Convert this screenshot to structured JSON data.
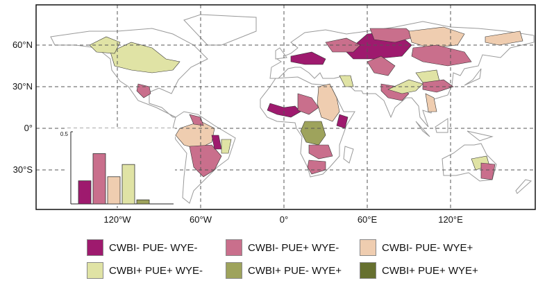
{
  "axes": {
    "lon_ticks": [
      {
        "value": -120,
        "label": "120°W"
      },
      {
        "value": -60,
        "label": "60°W"
      },
      {
        "value": 0,
        "label": "0°"
      },
      {
        "value": 60,
        "label": "60°E"
      },
      {
        "value": 120,
        "label": "120°E"
      }
    ],
    "lat_ticks": [
      {
        "value": 60,
        "label": "60°N"
      },
      {
        "value": 30,
        "label": "30°N"
      },
      {
        "value": 0,
        "label": "0°"
      },
      {
        "value": -30,
        "label": "30°S"
      }
    ],
    "gridlines": "dashed"
  },
  "categories": [
    {
      "label": "CWBI- PUE- WYE-",
      "color": "#9e1a6e"
    },
    {
      "label": "CWBI- PUE+ WYE-",
      "color": "#c96f8c"
    },
    {
      "label": "CWBI- PUE- WYE+",
      "color": "#efcdb0"
    },
    {
      "label": "CWBI+ PUE+ WYE-",
      "color": "#e0e3a5"
    },
    {
      "label": "CWBI+ PUE- WYE+",
      "color": "#9ea35c"
    },
    {
      "label": "CWBI+ PUE+ WYE+",
      "color": "#66702f"
    }
  ],
  "regions": [
    {
      "cat": 3,
      "poly": [
        [
          -125,
          55
        ],
        [
          -110,
          62
        ],
        [
          -95,
          58
        ],
        [
          -85,
          50
        ],
        [
          -75,
          48
        ],
        [
          -80,
          42
        ],
        [
          -95,
          40
        ],
        [
          -110,
          42
        ],
        [
          -122,
          45
        ]
      ]
    },
    {
      "cat": 3,
      "poly": [
        [
          -140,
          60
        ],
        [
          -128,
          66
        ],
        [
          -118,
          62
        ],
        [
          -122,
          54
        ],
        [
          -135,
          55
        ]
      ]
    },
    {
      "cat": 1,
      "poly": [
        [
          -105,
          32
        ],
        [
          -97,
          30
        ],
        [
          -96,
          25
        ],
        [
          -101,
          22
        ],
        [
          -106,
          27
        ]
      ]
    },
    {
      "cat": 0,
      "poly": [
        [
          5,
          52
        ],
        [
          20,
          55
        ],
        [
          30,
          50
        ],
        [
          28,
          46
        ],
        [
          15,
          46
        ],
        [
          5,
          48
        ]
      ]
    },
    {
      "cat": 0,
      "poly": [
        [
          45,
          55
        ],
        [
          60,
          68
        ],
        [
          80,
          70
        ],
        [
          92,
          60
        ],
        [
          85,
          52
        ],
        [
          65,
          50
        ],
        [
          50,
          50
        ]
      ]
    },
    {
      "cat": 1,
      "poly": [
        [
          30,
          62
        ],
        [
          45,
          65
        ],
        [
          55,
          60
        ],
        [
          50,
          55
        ],
        [
          35,
          55
        ]
      ]
    },
    {
      "cat": 1,
      "poly": [
        [
          62,
          72
        ],
        [
          88,
          72
        ],
        [
          95,
          66
        ],
        [
          80,
          62
        ],
        [
          65,
          64
        ]
      ]
    },
    {
      "cat": 2,
      "poly": [
        [
          90,
          70
        ],
        [
          115,
          73
        ],
        [
          130,
          68
        ],
        [
          125,
          60
        ],
        [
          105,
          58
        ],
        [
          92,
          62
        ]
      ]
    },
    {
      "cat": 2,
      "poly": [
        [
          145,
          66
        ],
        [
          170,
          70
        ],
        [
          172,
          63
        ],
        [
          155,
          60
        ],
        [
          145,
          62
        ]
      ]
    },
    {
      "cat": 1,
      "poly": [
        [
          93,
          58
        ],
        [
          110,
          60
        ],
        [
          130,
          55
        ],
        [
          135,
          48
        ],
        [
          118,
          45
        ],
        [
          100,
          48
        ],
        [
          92,
          52
        ]
      ]
    },
    {
      "cat": 1,
      "poly": [
        [
          60,
          48
        ],
        [
          70,
          52
        ],
        [
          80,
          45
        ],
        [
          75,
          38
        ],
        [
          65,
          40
        ]
      ]
    },
    {
      "cat": 1,
      "poly": [
        [
          70,
          32
        ],
        [
          82,
          30
        ],
        [
          90,
          25
        ],
        [
          85,
          20
        ],
        [
          75,
          22
        ],
        [
          70,
          27
        ]
      ]
    },
    {
      "cat": 3,
      "poly": [
        [
          75,
          28
        ],
        [
          90,
          35
        ],
        [
          100,
          32
        ],
        [
          95,
          27
        ],
        [
          85,
          25
        ]
      ]
    },
    {
      "cat": 3,
      "poly": [
        [
          95,
          40
        ],
        [
          110,
          42
        ],
        [
          112,
          34
        ],
        [
          100,
          33
        ]
      ]
    },
    {
      "cat": 1,
      "poly": [
        [
          100,
          33
        ],
        [
          115,
          35
        ],
        [
          122,
          30
        ],
        [
          110,
          26
        ],
        [
          100,
          28
        ]
      ]
    },
    {
      "cat": 2,
      "poly": [
        [
          102,
          25
        ],
        [
          108,
          22
        ],
        [
          110,
          12
        ],
        [
          104,
          12
        ]
      ]
    },
    {
      "cat": 3,
      "poly": [
        [
          40,
          38
        ],
        [
          48,
          38
        ],
        [
          50,
          30
        ],
        [
          44,
          30
        ]
      ]
    },
    {
      "cat": 0,
      "poly": [
        [
          -10,
          18
        ],
        [
          0,
          15
        ],
        [
          8,
          16
        ],
        [
          12,
          12
        ],
        [
          5,
          8
        ],
        [
          -5,
          10
        ],
        [
          -12,
          13
        ]
      ]
    },
    {
      "cat": 1,
      "poly": [
        [
          10,
          25
        ],
        [
          20,
          22
        ],
        [
          25,
          15
        ],
        [
          18,
          10
        ],
        [
          10,
          13
        ]
      ]
    },
    {
      "cat": 2,
      "poly": [
        [
          25,
          30
        ],
        [
          33,
          32
        ],
        [
          38,
          22
        ],
        [
          40,
          12
        ],
        [
          35,
          5
        ],
        [
          27,
          8
        ],
        [
          24,
          18
        ]
      ]
    },
    {
      "cat": 0,
      "poly": [
        [
          40,
          10
        ],
        [
          46,
          8
        ],
        [
          44,
          0
        ],
        [
          38,
          2
        ]
      ]
    },
    {
      "cat": 4,
      "poly": [
        [
          15,
          5
        ],
        [
          27,
          5
        ],
        [
          30,
          -5
        ],
        [
          25,
          -12
        ],
        [
          16,
          -10
        ],
        [
          12,
          -2
        ]
      ]
    },
    {
      "cat": 1,
      "poly": [
        [
          18,
          -12
        ],
        [
          32,
          -12
        ],
        [
          35,
          -20
        ],
        [
          25,
          -22
        ],
        [
          18,
          -18
        ]
      ]
    },
    {
      "cat": 1,
      "poly": [
        [
          18,
          -23
        ],
        [
          30,
          -24
        ],
        [
          30,
          -30
        ],
        [
          20,
          -33
        ],
        [
          17,
          -28
        ]
      ]
    },
    {
      "cat": 2,
      "poly": [
        [
          -75,
          0
        ],
        [
          -60,
          5
        ],
        [
          -50,
          0
        ],
        [
          -52,
          -10
        ],
        [
          -62,
          -15
        ],
        [
          -72,
          -12
        ],
        [
          -78,
          -5
        ]
      ]
    },
    {
      "cat": 1,
      "poly": [
        [
          -68,
          -13
        ],
        [
          -52,
          -12
        ],
        [
          -45,
          -20
        ],
        [
          -50,
          -30
        ],
        [
          -58,
          -35
        ],
        [
          -65,
          -28
        ]
      ]
    },
    {
      "cat": 0,
      "poly": [
        [
          -52,
          -5
        ],
        [
          -47,
          -5
        ],
        [
          -45,
          -15
        ],
        [
          -50,
          -15
        ]
      ]
    },
    {
      "cat": 3,
      "poly": [
        [
          -45,
          -8
        ],
        [
          -38,
          -8
        ],
        [
          -40,
          -18
        ],
        [
          -45,
          -18
        ]
      ]
    },
    {
      "cat": 1,
      "poly": [
        [
          -68,
          10
        ],
        [
          -60,
          8
        ],
        [
          -58,
          2
        ],
        [
          -65,
          3
        ]
      ]
    },
    {
      "cat": 3,
      "poly": [
        [
          135,
          -22
        ],
        [
          146,
          -20
        ],
        [
          148,
          -27
        ],
        [
          138,
          -30
        ]
      ]
    },
    {
      "cat": 1,
      "poly": [
        [
          142,
          -25
        ],
        [
          152,
          -26
        ],
        [
          150,
          -37
        ],
        [
          142,
          -36
        ]
      ]
    }
  ],
  "inset_chart": {
    "type": "bar",
    "y_ticks": [
      {
        "value": 0.5,
        "label": "0.5"
      }
    ],
    "ylim": [
      0,
      0.5
    ],
    "values": [
      0.17,
      0.37,
      0.2,
      0.29,
      0.03,
      0.0
    ]
  }
}
